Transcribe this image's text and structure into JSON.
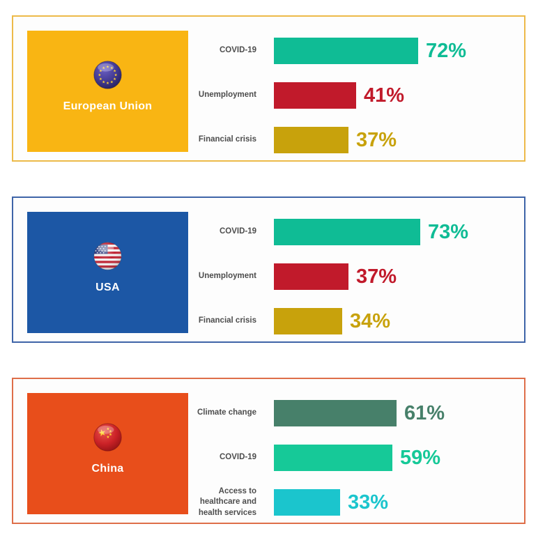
{
  "chart_data": [
    {
      "type": "bar",
      "orientation": "horizontal",
      "title": "European Union",
      "flag_icon": "eu-flag-icon",
      "panel_border_color": "#EDBA49",
      "block_color": "#F9B513",
      "region_text_color": "#FFFFFF",
      "categories": [
        "COVID-19",
        "Unemployment",
        "Financial crisis"
      ],
      "values": [
        72,
        41,
        37
      ],
      "data_labels": [
        "72%",
        "41%",
        "37%"
      ],
      "bar_colors": [
        "#0FBC95",
        "#C11A2B",
        "#C8A20C"
      ],
      "unit": "%",
      "xlim": [
        0,
        100
      ],
      "grid": false,
      "legend": false
    },
    {
      "type": "bar",
      "orientation": "horizontal",
      "title": "USA",
      "flag_icon": "usa-flag-icon",
      "panel_border_color": "#3E64A8",
      "block_color": "#1C57A5",
      "region_text_color": "#FFFFFF",
      "categories": [
        "COVID-19",
        "Unemployment",
        "Financial crisis"
      ],
      "values": [
        73,
        37,
        34
      ],
      "data_labels": [
        "73%",
        "37%",
        "34%"
      ],
      "bar_colors": [
        "#0FBC95",
        "#C11A2B",
        "#C8A20C"
      ],
      "unit": "%",
      "xlim": [
        0,
        100
      ],
      "grid": false,
      "legend": false
    },
    {
      "type": "bar",
      "orientation": "horizontal",
      "title": "China",
      "flag_icon": "china-flag-icon",
      "panel_border_color": "#DE6E49",
      "block_color": "#E84E1B",
      "region_text_color": "#FFFFFF",
      "categories": [
        "Climate change",
        "COVID-19",
        "Access to healthcare and health services"
      ],
      "values": [
        61,
        59,
        33
      ],
      "data_labels": [
        "61%",
        "59%",
        "33%"
      ],
      "bar_colors": [
        "#47806A",
        "#16C998",
        "#1BC5CD"
      ],
      "unit": "%",
      "xlim": [
        0,
        100
      ],
      "grid": false,
      "legend": false
    }
  ],
  "category_label_color": "#4D4D4D"
}
